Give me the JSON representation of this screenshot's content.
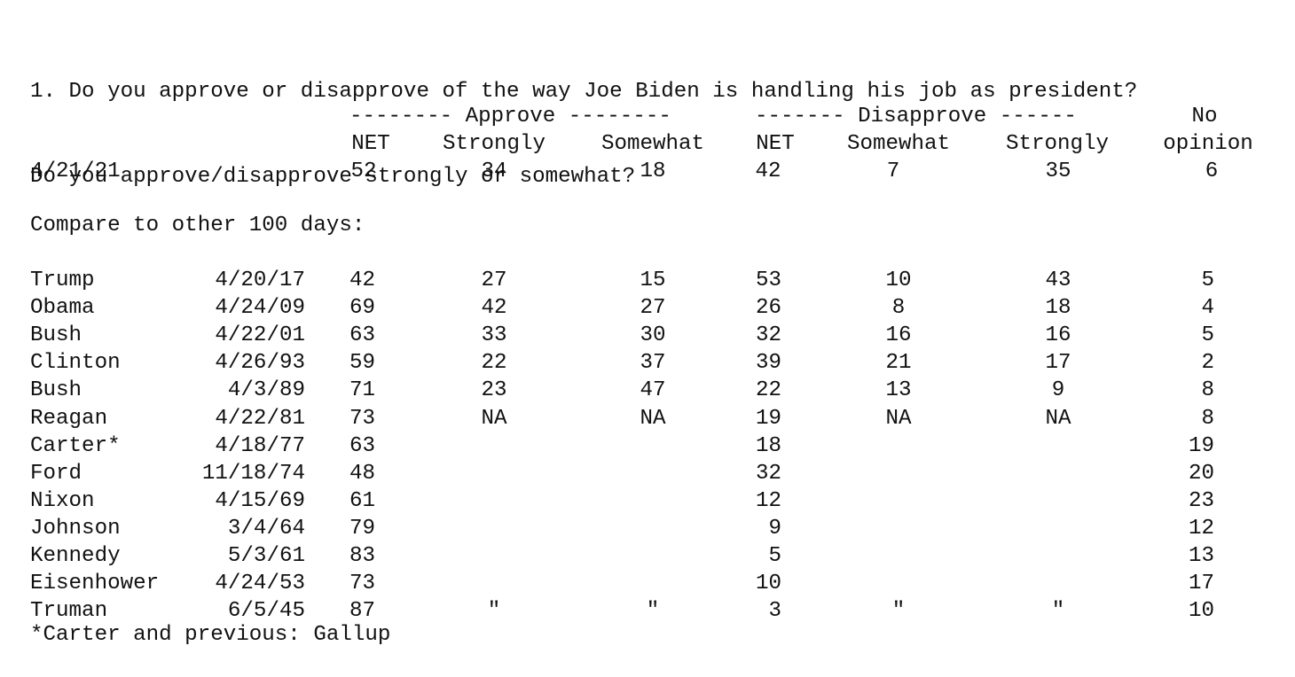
{
  "question": {
    "line1": "1. Do you approve or disapprove of the way Joe Biden is handling his job as president?",
    "line2": "Do you approve/disapprove strongly or somewhat?"
  },
  "headers": {
    "approve_group": "-------- Approve --------",
    "disapprove_group": "------- Disapprove ------",
    "no_top": "No",
    "no_bottom": "opinion",
    "columns": [
      "NET",
      "Strongly",
      "Somewhat",
      "NET",
      "Somewhat",
      "Strongly"
    ]
  },
  "current": {
    "date": "4/21/21",
    "values": [
      "52",
      "34",
      "18",
      "42",
      "7",
      "35",
      "6"
    ]
  },
  "compare_label": "Compare to other 100 days:",
  "rows": [
    {
      "name": "Trump",
      "date": "4/20/17",
      "values": [
        "42",
        "27",
        "15",
        "53",
        "10",
        "43",
        "5"
      ]
    },
    {
      "name": "Obama",
      "date": "4/24/09",
      "values": [
        "69",
        "42",
        "27",
        "26",
        "8",
        "18",
        "4"
      ]
    },
    {
      "name": "Bush",
      "date": "4/22/01",
      "values": [
        "63",
        "33",
        "30",
        "32",
        "16",
        "16",
        "5"
      ]
    },
    {
      "name": "Clinton",
      "date": "4/26/93",
      "values": [
        "59",
        "22",
        "37",
        "39",
        "21",
        "17",
        "2"
      ]
    },
    {
      "name": "Bush",
      "date": "4/3/89",
      "values": [
        "71",
        "23",
        "47",
        "22",
        "13",
        "9",
        "8"
      ]
    },
    {
      "name": "Reagan",
      "date": "4/22/81",
      "values": [
        "73",
        "NA",
        "NA",
        "19",
        "NA",
        "NA",
        "8"
      ]
    },
    {
      "name": "Carter*",
      "date": "4/18/77",
      "values": [
        "63",
        "",
        "",
        "18",
        "",
        "",
        "19"
      ]
    },
    {
      "name": "Ford",
      "date": "11/18/74",
      "values": [
        "48",
        "",
        "",
        "32",
        "",
        "",
        "20"
      ]
    },
    {
      "name": "Nixon",
      "date": "4/15/69",
      "values": [
        "61",
        "",
        "",
        "12",
        "",
        "",
        "23"
      ]
    },
    {
      "name": "Johnson",
      "date": "3/4/64",
      "values": [
        "79",
        "",
        "",
        "9",
        "",
        "",
        "12"
      ]
    },
    {
      "name": "Kennedy",
      "date": "5/3/61",
      "values": [
        "83",
        "",
        "",
        "5",
        "",
        "",
        "13"
      ]
    },
    {
      "name": "Eisenhower",
      "date": "4/24/53",
      "values": [
        "73",
        "",
        "",
        "10",
        "",
        "",
        "17"
      ]
    },
    {
      "name": "Truman",
      "date": "6/5/45",
      "values": [
        "87",
        "\"",
        "\"",
        "3",
        "\"",
        "\"",
        "10"
      ]
    }
  ],
  "footnote": "*Carter and previous: Gallup"
}
